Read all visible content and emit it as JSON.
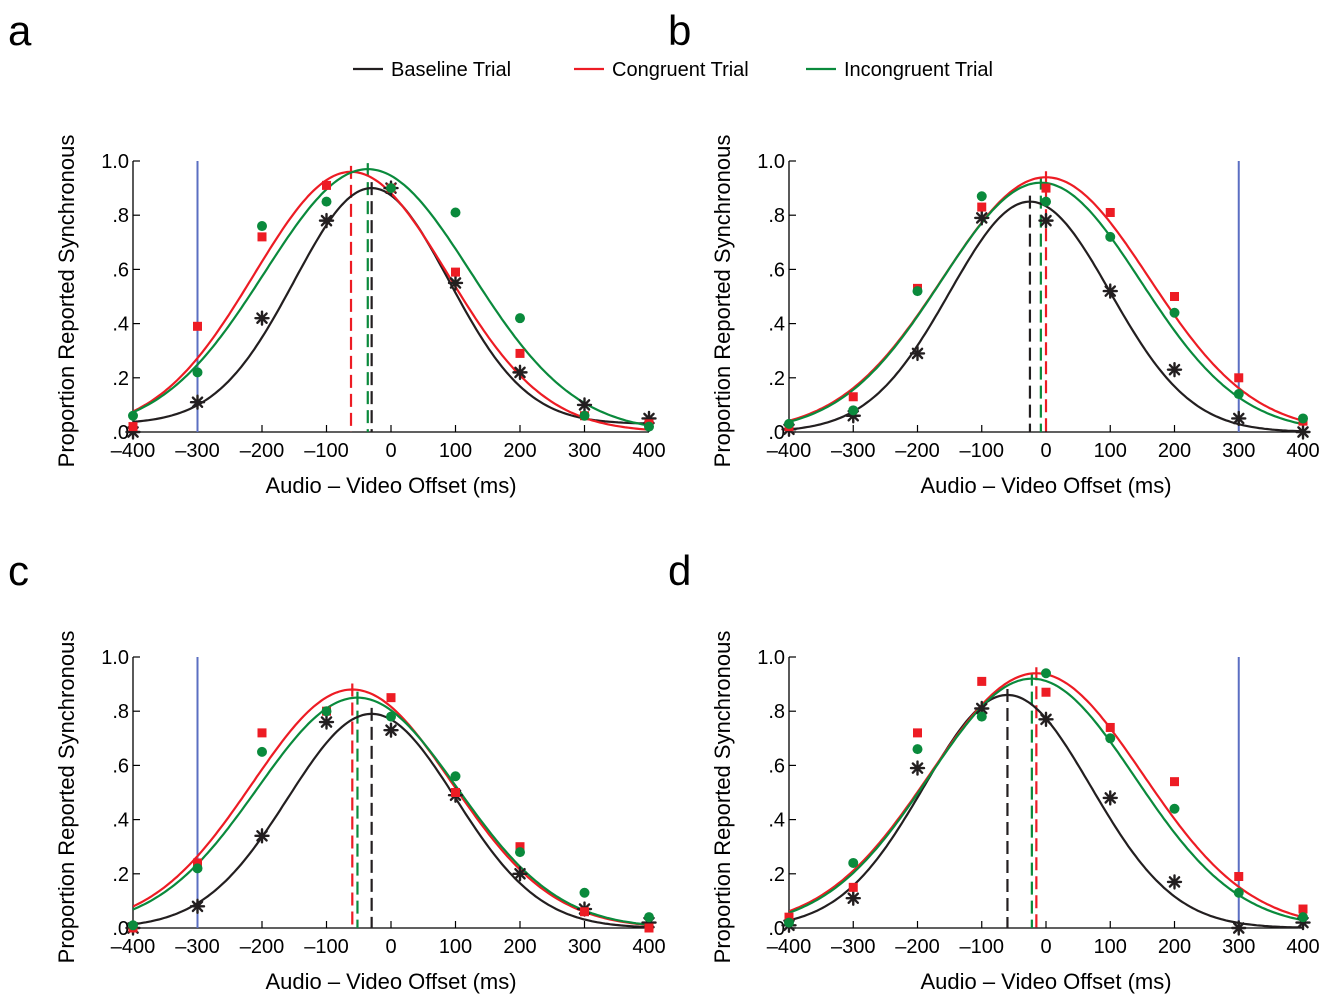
{
  "colors": {
    "baseline": "#231f20",
    "congruent": "#ed1c24",
    "incongruent": "#0a8a3c",
    "marker_line": "#5b6fc2"
  },
  "legend": [
    {
      "key": "baseline",
      "label": "Baseline Trial"
    },
    {
      "key": "congruent",
      "label": "Congruent Trial"
    },
    {
      "key": "incongruent",
      "label": "Incongruent Trial"
    }
  ],
  "chart_data": [
    {
      "panel": "a",
      "type": "scatter",
      "xlabel": "Audio – Video Offset (ms)",
      "ylabel": "Proportion Reported Synchronous",
      "xlim": [
        -400,
        400
      ],
      "ylim": [
        0,
        1.0
      ],
      "xticks": [
        -400,
        -300,
        -200,
        -100,
        0,
        100,
        200,
        300,
        400
      ],
      "xtick_labels": [
        "–400",
        "–300",
        "–200",
        "–100",
        "0",
        "100",
        "200",
        "300",
        "400"
      ],
      "yticks": [
        0,
        0.2,
        0.4,
        0.6,
        0.8,
        1.0
      ],
      "ytick_labels": [
        ".0",
        ".2",
        ".4",
        ".6",
        ".8",
        "1.0"
      ],
      "x": [
        -400,
        -300,
        -200,
        -100,
        0,
        100,
        200,
        300,
        400
      ],
      "marker_line": -300,
      "series": [
        {
          "name": "Baseline Trial",
          "key": "baseline",
          "marker": "asterisk",
          "values": [
            0.0,
            0.11,
            0.42,
            0.78,
            0.9,
            0.55,
            0.22,
            0.1,
            0.05
          ],
          "fit": {
            "peak": 0.9,
            "mean": -30,
            "sd": 120,
            "base": 0.03
          },
          "pss": -30
        },
        {
          "name": "Congruent Trial",
          "key": "congruent",
          "marker": "square",
          "values": [
            0.02,
            0.39,
            0.72,
            0.91,
            0.9,
            0.59,
            0.29,
            0.06,
            0.03
          ],
          "fit": {
            "peak": 0.96,
            "mean": -62,
            "sd": 150,
            "base": 0.0
          },
          "pss": -62
        },
        {
          "name": "Incongruent Trial",
          "key": "incongruent",
          "marker": "circle",
          "values": [
            0.06,
            0.22,
            0.76,
            0.85,
            0.9,
            0.81,
            0.42,
            0.06,
            0.02
          ],
          "fit": {
            "peak": 0.97,
            "mean": -36,
            "sd": 160,
            "base": 0.0
          },
          "pss": -36
        }
      ]
    },
    {
      "panel": "b",
      "type": "scatter",
      "xlabel": "Audio – Video Offset (ms)",
      "ylabel": "Proportion Reported Synchronous",
      "xlim": [
        -400,
        400
      ],
      "ylim": [
        0,
        1.0
      ],
      "xticks": [
        -400,
        -300,
        -200,
        -100,
        0,
        100,
        200,
        300,
        400
      ],
      "xtick_labels": [
        "–400",
        "–300",
        "–200",
        "–100",
        "0",
        "100",
        "200",
        "300",
        "400"
      ],
      "yticks": [
        0,
        0.2,
        0.4,
        0.6,
        0.8,
        1.0
      ],
      "ytick_labels": [
        ".0",
        ".2",
        ".4",
        ".6",
        ".8",
        "1.0"
      ],
      "x": [
        -400,
        -300,
        -200,
        -100,
        0,
        100,
        200,
        300,
        400
      ],
      "marker_line": 300,
      "series": [
        {
          "name": "Baseline Trial",
          "key": "baseline",
          "marker": "asterisk",
          "values": [
            0.01,
            0.06,
            0.29,
            0.79,
            0.78,
            0.52,
            0.23,
            0.05,
            0.0
          ],
          "fit": {
            "peak": 0.85,
            "mean": -25,
            "sd": 125,
            "base": 0.0
          },
          "pss": -25
        },
        {
          "name": "Congruent Trial",
          "key": "congruent",
          "marker": "square",
          "values": [
            0.02,
            0.13,
            0.53,
            0.83,
            0.9,
            0.81,
            0.5,
            0.2,
            0.04
          ],
          "fit": {
            "peak": 0.94,
            "mean": 0,
            "sd": 160,
            "base": 0.0
          },
          "pss": 0
        },
        {
          "name": "Incongruent Trial",
          "key": "incongruent",
          "marker": "circle",
          "values": [
            0.03,
            0.08,
            0.52,
            0.87,
            0.85,
            0.72,
            0.44,
            0.14,
            0.05
          ],
          "fit": {
            "peak": 0.92,
            "mean": -8,
            "sd": 155,
            "base": 0.0
          },
          "pss": -8
        }
      ]
    },
    {
      "panel": "c",
      "type": "scatter",
      "xlabel": "Audio – Video Offset (ms)",
      "ylabel": "Proportion Reported Synchronous",
      "xlim": [
        -400,
        400
      ],
      "ylim": [
        0,
        1.0
      ],
      "xticks": [
        -400,
        -300,
        -200,
        -100,
        0,
        100,
        200,
        300,
        400
      ],
      "xtick_labels": [
        "–400",
        "–300",
        "–200",
        "–100",
        "0",
        "100",
        "200",
        "300",
        "400"
      ],
      "yticks": [
        0,
        0.2,
        0.4,
        0.6,
        0.8,
        1.0
      ],
      "ytick_labels": [
        ".0",
        ".2",
        ".4",
        ".6",
        ".8",
        "1.0"
      ],
      "x": [
        -400,
        -300,
        -200,
        -100,
        0,
        100,
        200,
        300,
        400
      ],
      "marker_line": -300,
      "series": [
        {
          "name": "Baseline Trial",
          "key": "baseline",
          "marker": "asterisk",
          "values": [
            0.0,
            0.08,
            0.34,
            0.76,
            0.73,
            0.49,
            0.2,
            0.07,
            0.02
          ],
          "fit": {
            "peak": 0.79,
            "mean": -30,
            "sd": 130,
            "base": 0.0
          },
          "pss": -30
        },
        {
          "name": "Congruent Trial",
          "key": "congruent",
          "marker": "square",
          "values": [
            0.0,
            0.24,
            0.72,
            0.8,
            0.85,
            0.5,
            0.3,
            0.06,
            0.0
          ],
          "fit": {
            "peak": 0.88,
            "mean": -60,
            "sd": 155,
            "base": 0.0
          },
          "pss": -60
        },
        {
          "name": "Incongruent Trial",
          "key": "incongruent",
          "marker": "circle",
          "values": [
            0.01,
            0.22,
            0.65,
            0.8,
            0.78,
            0.56,
            0.28,
            0.13,
            0.04
          ],
          "fit": {
            "peak": 0.85,
            "mean": -52,
            "sd": 155,
            "base": 0.0
          },
          "pss": -52
        }
      ]
    },
    {
      "panel": "d",
      "type": "scatter",
      "xlabel": "Audio – Video Offset (ms)",
      "ylabel": "Proportion Reported Synchronous",
      "xlim": [
        -400,
        400
      ],
      "ylim": [
        0,
        1.0
      ],
      "xticks": [
        -400,
        -300,
        -200,
        -100,
        0,
        100,
        200,
        300,
        400
      ],
      "xtick_labels": [
        "–400",
        "–300",
        "–200",
        "–100",
        "0",
        "100",
        "200",
        "300",
        "400"
      ],
      "yticks": [
        0,
        0.2,
        0.4,
        0.6,
        0.8,
        1.0
      ],
      "ytick_labels": [
        ".0",
        ".2",
        ".4",
        ".6",
        ".8",
        "1.0"
      ],
      "x": [
        -400,
        -300,
        -200,
        -100,
        0,
        100,
        200,
        300,
        400
      ],
      "marker_line": 300,
      "series": [
        {
          "name": "Baseline Trial",
          "key": "baseline",
          "marker": "asterisk",
          "values": [
            0.01,
            0.11,
            0.59,
            0.81,
            0.77,
            0.48,
            0.17,
            0.0,
            0.02
          ],
          "fit": {
            "peak": 0.86,
            "mean": -60,
            "sd": 130,
            "base": 0.0
          },
          "pss": -60
        },
        {
          "name": "Congruent Trial",
          "key": "congruent",
          "marker": "square",
          "values": [
            0.04,
            0.15,
            0.72,
            0.91,
            0.87,
            0.74,
            0.54,
            0.19,
            0.07
          ],
          "fit": {
            "peak": 0.94,
            "mean": -15,
            "sd": 165,
            "base": 0.0
          },
          "pss": -15
        },
        {
          "name": "Incongruent Trial",
          "key": "incongruent",
          "marker": "circle",
          "values": [
            0.02,
            0.24,
            0.66,
            0.78,
            0.94,
            0.7,
            0.44,
            0.13,
            0.04
          ],
          "fit": {
            "peak": 0.92,
            "mean": -22,
            "sd": 160,
            "base": 0.0
          },
          "pss": -22
        }
      ]
    }
  ]
}
